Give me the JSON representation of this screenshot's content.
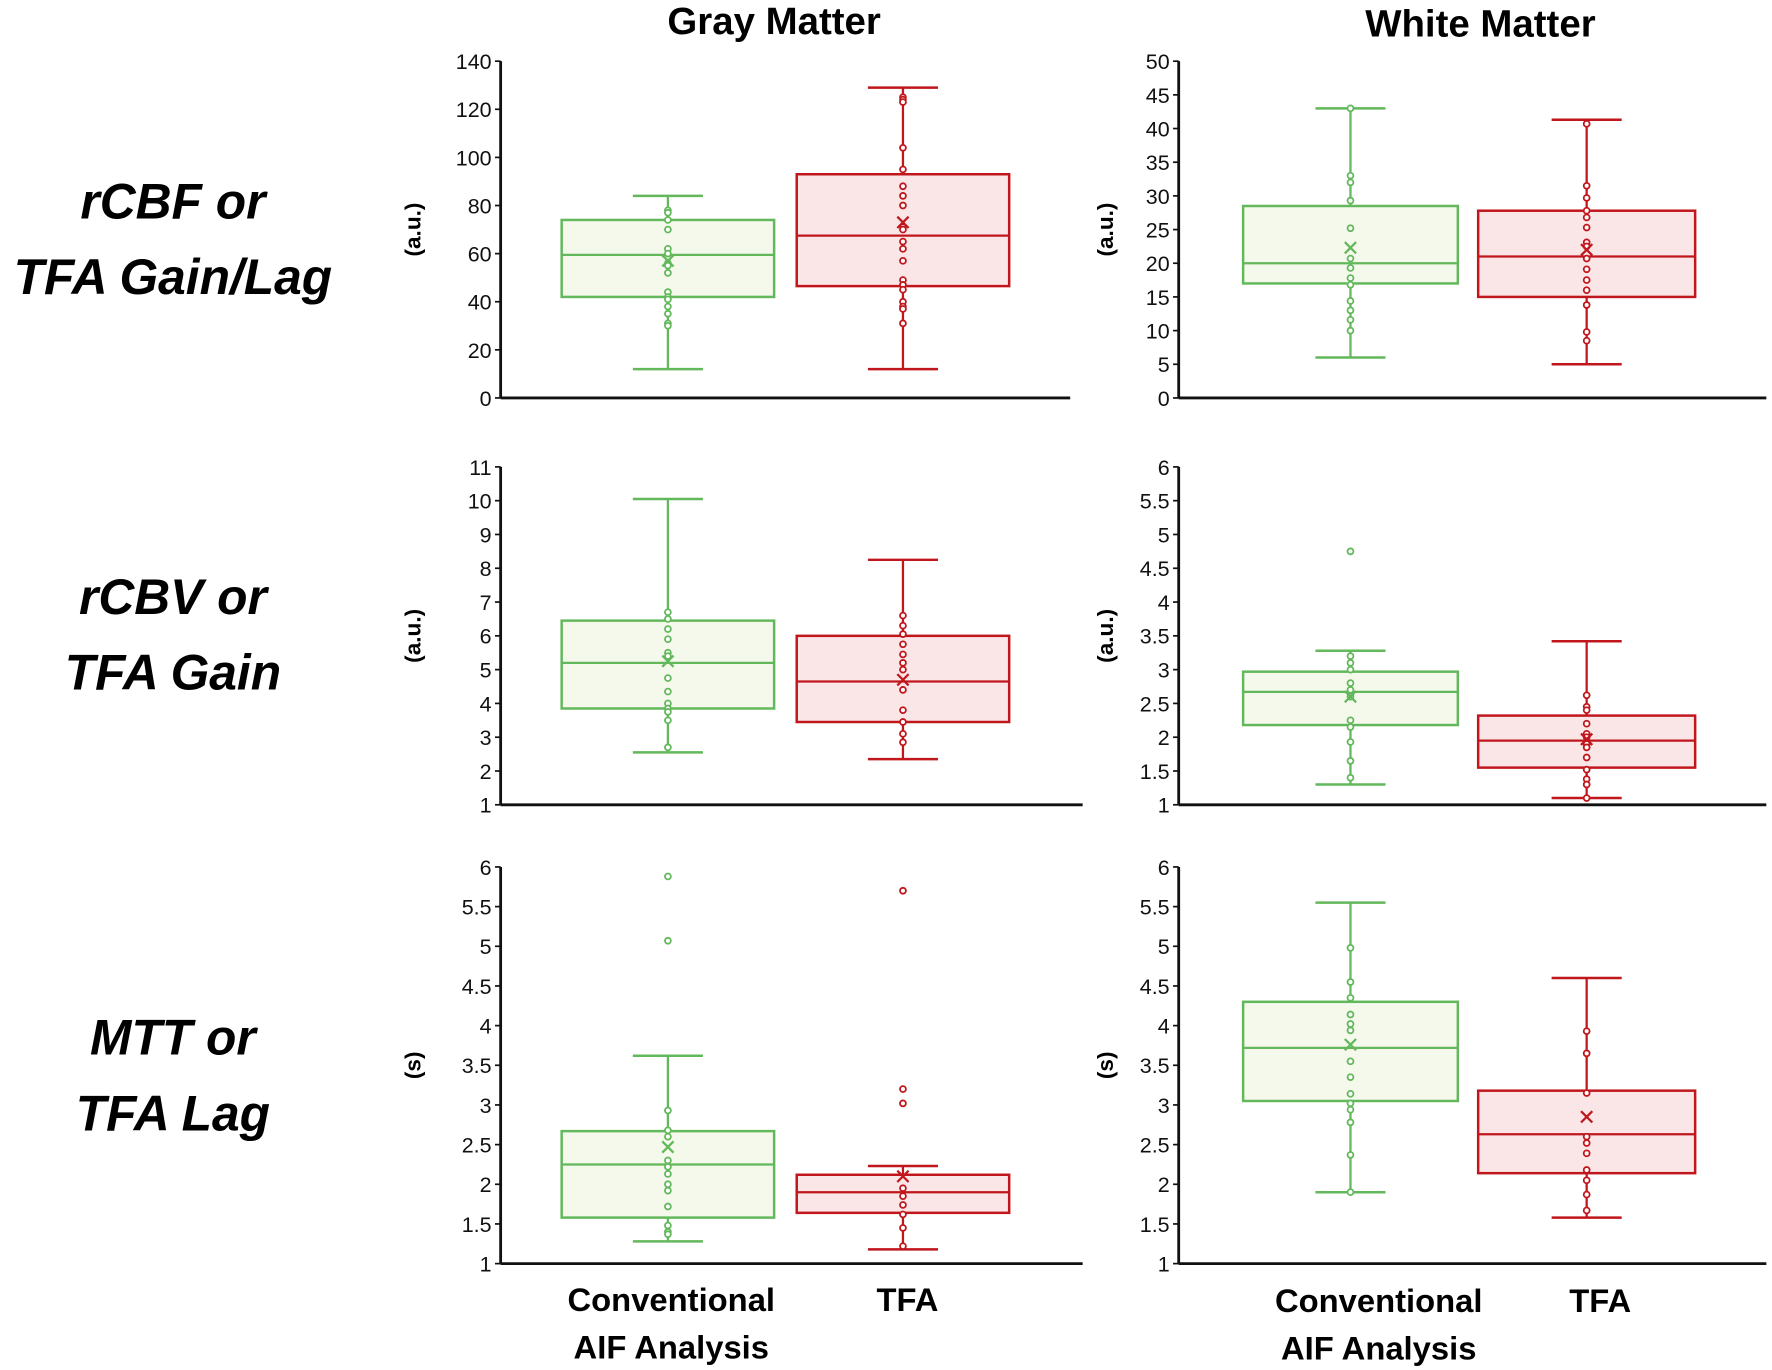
{
  "colors": {
    "conventional_stroke": "#62b85a",
    "conventional_fill": "#f4f9ec",
    "tfa_stroke": "#c0161c",
    "tfa_fill": "#fbe6e7",
    "axis": "#111111"
  },
  "column_titles": [
    "Gray Matter",
    "White Matter"
  ],
  "row_labels": [
    [
      "rCBF or",
      "TFA Gain/Lag"
    ],
    [
      "rCBV or",
      "TFA Gain"
    ],
    [
      "MTT or",
      "TFA Lag"
    ]
  ],
  "x_labels": {
    "conventional": [
      "Conventional",
      "AIF Analysis"
    ],
    "tfa": "TFA"
  },
  "chart_data": [
    {
      "type": "box",
      "row": 0,
      "col": 0,
      "title": "Gray Matter",
      "ylabel": "(a.u.)",
      "ylim": [
        0,
        140
      ],
      "yticks": [
        "0",
        "20",
        "40",
        "60",
        "80",
        "100",
        "120",
        "140"
      ],
      "ytick_values": [
        0,
        20,
        40,
        60,
        80,
        100,
        120,
        140
      ],
      "series": [
        {
          "name": "Conventional AIF Analysis",
          "whisker_low": 12,
          "q1": 42,
          "median": 59.5,
          "q3": 74,
          "whisker_high": 84,
          "mean": 57,
          "points": [
            78,
            77,
            74,
            70,
            62,
            60,
            56,
            55,
            52,
            44,
            42,
            41,
            38,
            35,
            31,
            30
          ]
        },
        {
          "name": "TFA",
          "whisker_low": 12,
          "q1": 46.5,
          "median": 67.5,
          "q3": 93,
          "whisker_high": 129,
          "mean": 73,
          "points": [
            125,
            124,
            123,
            104,
            95,
            88,
            84,
            80,
            71,
            70,
            65,
            62,
            57,
            49,
            47,
            45,
            40,
            38,
            37,
            31
          ]
        }
      ]
    },
    {
      "type": "box",
      "row": 0,
      "col": 1,
      "title": "White Matter",
      "ylabel": "(a.u.)",
      "ylim": [
        0,
        50
      ],
      "yticks": [
        "0",
        "5",
        "10",
        "15",
        "20",
        "25",
        "30",
        "35",
        "40",
        "45",
        "50"
      ],
      "ytick_values": [
        0,
        5,
        10,
        15,
        20,
        25,
        30,
        35,
        40,
        45,
        50
      ],
      "series": [
        {
          "name": "Conventional AIF Analysis",
          "whisker_low": 6,
          "q1": 17,
          "median": 20,
          "q3": 28.5,
          "whisker_high": 43,
          "mean": 22.3,
          "points": [
            43,
            33,
            32,
            29.3,
            25.2,
            20.7,
            19.3,
            17.8,
            16.8,
            14.4,
            13,
            11.6,
            10
          ]
        },
        {
          "name": "TFA",
          "whisker_low": 5,
          "q1": 15,
          "median": 21,
          "q3": 27.8,
          "whisker_high": 41.3,
          "mean": 22,
          "points": [
            40.7,
            31.5,
            29.7,
            27.8,
            26.8,
            25.3,
            23.1,
            22.5,
            20.7,
            19.1,
            17.5,
            16,
            13.8,
            9.8,
            8.5
          ]
        }
      ]
    },
    {
      "type": "box",
      "row": 1,
      "col": 0,
      "ylabel": "(a.u.)",
      "ylim": [
        1,
        11
      ],
      "yticks": [
        "1",
        "2",
        "3",
        "4",
        "5",
        "6",
        "7",
        "8",
        "9",
        "10",
        "11"
      ],
      "ytick_values": [
        1,
        2,
        3,
        4,
        5,
        6,
        7,
        8,
        9,
        10,
        11
      ],
      "series": [
        {
          "name": "Conventional AIF Analysis",
          "whisker_low": 2.55,
          "q1": 3.85,
          "median": 5.2,
          "q3": 6.45,
          "whisker_high": 10.05,
          "mean": 5.25,
          "points": [
            6.7,
            6.5,
            6.2,
            5.9,
            5.5,
            5.4,
            4.75,
            4.35,
            4.0,
            3.85,
            3.75,
            3.5,
            2.7
          ]
        },
        {
          "name": "TFA",
          "whisker_low": 2.35,
          "q1": 3.45,
          "median": 4.65,
          "q3": 6.0,
          "whisker_high": 8.25,
          "mean": 4.7,
          "points": [
            6.6,
            6.3,
            6.05,
            5.75,
            5.45,
            5.2,
            5.0,
            4.4,
            3.8,
            3.45,
            3.1,
            2.85
          ]
        }
      ]
    },
    {
      "type": "box",
      "row": 1,
      "col": 1,
      "ylabel": "(a.u.)",
      "ylim": [
        1,
        6
      ],
      "yticks": [
        "1",
        "1.5",
        "2",
        "2.5",
        "3",
        "3.5",
        "4",
        "4.5",
        "5",
        "5.5",
        "6"
      ],
      "ytick_values": [
        1,
        1.5,
        2,
        2.5,
        3,
        3.5,
        4,
        4.5,
        5,
        5.5,
        6
      ],
      "series": [
        {
          "name": "Conventional AIF Analysis",
          "whisker_low": 1.3,
          "q1": 2.18,
          "median": 2.67,
          "q3": 2.97,
          "whisker_high": 3.28,
          "mean": 2.6,
          "points": [
            4.75,
            3.2,
            3.1,
            3.0,
            2.8,
            2.7,
            2.6,
            2.25,
            2.15,
            1.93,
            1.65,
            1.4
          ]
        },
        {
          "name": "TFA",
          "whisker_low": 1.1,
          "q1": 1.55,
          "median": 1.95,
          "q3": 2.32,
          "whisker_high": 3.42,
          "mean": 1.97,
          "points": [
            2.62,
            2.45,
            2.4,
            2.2,
            2.05,
            2.0,
            1.9,
            1.85,
            1.7,
            1.52,
            1.38,
            1.3,
            1.1
          ]
        }
      ]
    },
    {
      "type": "box",
      "row": 2,
      "col": 0,
      "ylabel": "(s)",
      "ylim": [
        1,
        6
      ],
      "yticks": [
        "1",
        "1.5",
        "2",
        "2.5",
        "3",
        "3.5",
        "4",
        "4.5",
        "5",
        "5.5",
        "6"
      ],
      "ytick_values": [
        1,
        1.5,
        2,
        2.5,
        3,
        3.5,
        4,
        4.5,
        5,
        5.5,
        6
      ],
      "series": [
        {
          "name": "Conventional AIF Analysis",
          "whisker_low": 1.28,
          "q1": 1.58,
          "median": 2.25,
          "q3": 2.67,
          "whisker_high": 3.62,
          "mean": 2.47,
          "points": [
            5.88,
            5.07,
            2.93,
            2.68,
            2.6,
            2.3,
            2.22,
            2.13,
            2.0,
            1.92,
            1.72,
            1.48,
            1.4,
            1.37
          ]
        },
        {
          "name": "TFA",
          "whisker_low": 1.18,
          "q1": 1.64,
          "median": 1.9,
          "q3": 2.12,
          "whisker_high": 2.23,
          "mean": 2.1,
          "points": [
            5.7,
            3.2,
            3.02,
            1.95,
            1.85,
            1.74,
            1.62,
            1.45,
            1.22
          ]
        }
      ]
    },
    {
      "type": "box",
      "row": 2,
      "col": 1,
      "ylabel": "(s)",
      "ylim": [
        1,
        6
      ],
      "yticks": [
        "1",
        "1.5",
        "2",
        "2.5",
        "3",
        "3.5",
        "4",
        "4.5",
        "5",
        "5.5",
        "6"
      ],
      "ytick_values": [
        1,
        1.5,
        2,
        2.5,
        3,
        3.5,
        4,
        4.5,
        5,
        5.5,
        6
      ],
      "series": [
        {
          "name": "Conventional AIF Analysis",
          "whisker_low": 1.9,
          "q1": 3.05,
          "median": 3.72,
          "q3": 4.3,
          "whisker_high": 5.55,
          "mean": 3.76,
          "points": [
            4.98,
            4.55,
            4.35,
            4.14,
            4.02,
            3.94,
            3.55,
            3.35,
            3.14,
            3.02,
            2.94,
            2.78,
            2.37,
            1.9
          ]
        },
        {
          "name": "TFA",
          "whisker_low": 1.58,
          "q1": 2.14,
          "median": 2.63,
          "q3": 3.18,
          "whisker_high": 4.6,
          "mean": 2.85,
          "points": [
            3.93,
            3.65,
            3.15,
            2.6,
            2.52,
            2.39,
            2.18,
            2.05,
            1.87,
            1.67
          ]
        }
      ]
    }
  ]
}
